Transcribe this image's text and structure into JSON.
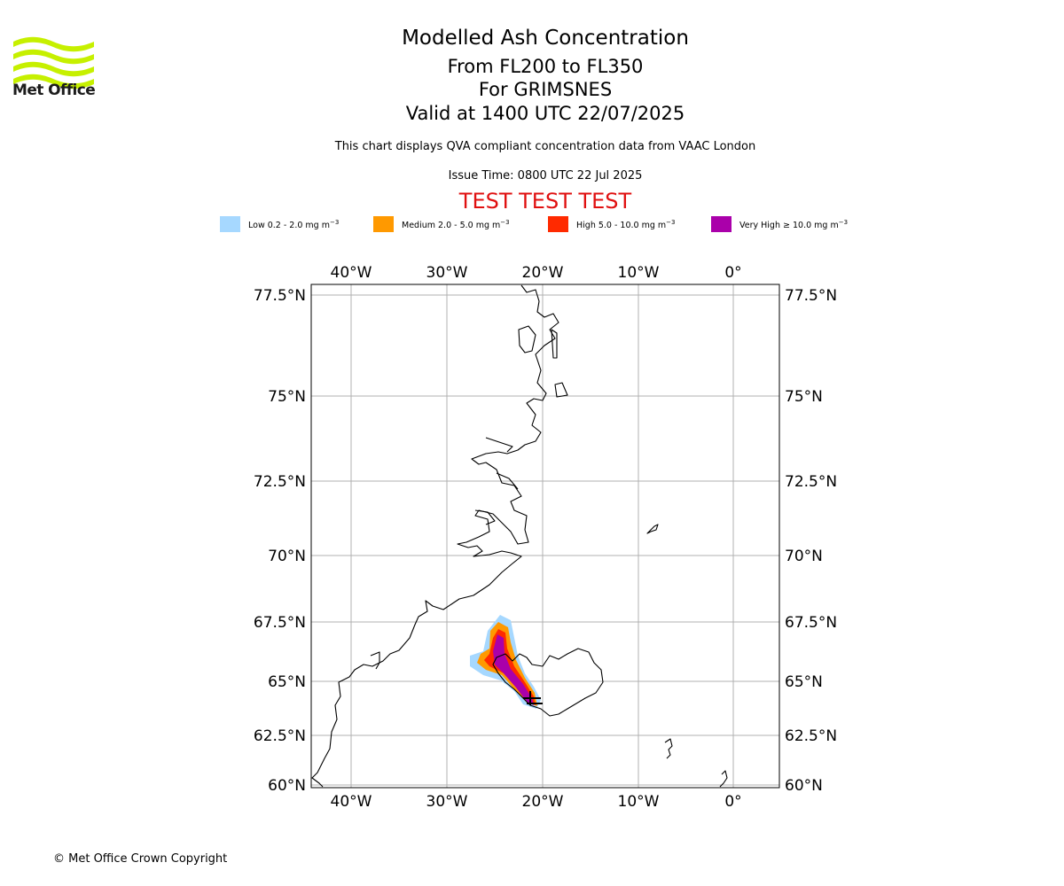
{
  "logo": {
    "name": "Met Office"
  },
  "header": {
    "title": "Modelled Ash Concentration",
    "levels": "From FL200 to FL350",
    "volcano": "For GRIMSNES",
    "valid": "Valid at 1400 UTC 22/07/2025",
    "compliance": "This chart displays QVA compliant concentration data from VAAC London",
    "issue": "Issue Time: 0800 UTC 22 Jul 2025",
    "test": "TEST TEST TEST"
  },
  "legend": [
    {
      "label": "Low 0.2 - 2.0 mg m",
      "unit_exp": "−3",
      "color": "#a6d8ff"
    },
    {
      "label": "Medium 2.0 - 5.0 mg m",
      "unit_exp": "−3",
      "color": "#ff9900"
    },
    {
      "label": "High 5.0 - 10.0 mg m",
      "unit_exp": "−3",
      "color": "#ff2a00"
    },
    {
      "label": "Very High ≥ 10.0 mg m",
      "unit_exp": "−3",
      "color": "#aa00aa"
    }
  ],
  "map": {
    "lon_labels": [
      "40°W",
      "30°W",
      "20°W",
      "10°W",
      "0°"
    ],
    "lat_labels": [
      "77.5°N",
      "75°N",
      "72.5°N",
      "70°N",
      "67.5°N",
      "65°N",
      "62.5°N",
      "60°N"
    ],
    "lon_values": [
      -40,
      -30,
      -20,
      -10,
      0
    ],
    "lat_values": [
      77.5,
      75,
      72.5,
      70,
      67.5,
      65,
      62.5,
      60
    ],
    "extent": {
      "lon_min": -44.2,
      "lon_max": 4.7,
      "lat_min": 60,
      "lat_max": 77.8
    },
    "grid_color": "#b0b0b0"
  },
  "footer": {
    "copyright": "© Met Office Crown Copyright"
  }
}
